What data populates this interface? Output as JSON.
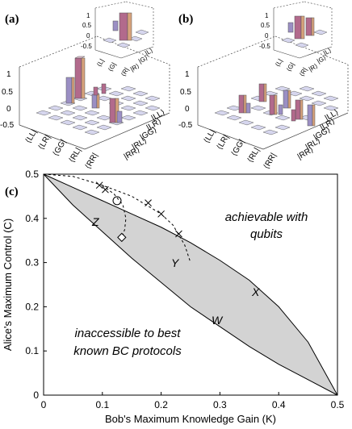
{
  "panels": {
    "a": {
      "label": "(a)",
      "main_tick_labels": [
        "1",
        "0.5",
        "0",
        "-0.5"
      ],
      "basis": [
        "⟨LL|",
        "⟨LR|",
        "⟨GG|",
        "⟨RL|",
        "⟨RR|"
      ],
      "basis_right": [
        "|LL⟩",
        "|LR⟩",
        "|GG⟩",
        "|RL⟩",
        "|RR⟩"
      ],
      "inset_tick_labels": [
        "1",
        "0.5",
        "0",
        "-0.5"
      ],
      "inset_basis": [
        "⟨L|",
        "⟨G|",
        "⟨R|"
      ],
      "inset_basis_right": [
        "|L⟩",
        "|G⟩",
        "|R⟩"
      ]
    },
    "b": {
      "label": "(b)",
      "main_tick_labels": [
        "1",
        "0.5",
        "0",
        "-0.5"
      ],
      "basis": [
        "⟨LL|",
        "⟨LR|",
        "⟨GG|",
        "⟨RL|",
        "⟨RR|"
      ],
      "basis_right": [
        "|LL⟩",
        "|LR⟩",
        "|GG⟩",
        "|RL⟩",
        "|RR⟩"
      ],
      "inset_tick_labels": [
        "1",
        "0.5",
        "0",
        "-0.5"
      ],
      "inset_basis": [
        "⟨L|",
        "⟨G|",
        "⟨R|"
      ],
      "inset_basis_right": [
        "|L⟩",
        "|G⟩",
        "|R⟩"
      ]
    }
  },
  "chart_data": {
    "label": "(c)",
    "type": "line",
    "xlabel": "Bob's Maximum Knowledge Gain (K)",
    "ylabel": "Alice's Maximum Control (C)",
    "xlim": [
      0,
      0.5
    ],
    "ylim": [
      0,
      0.5
    ],
    "xticks": [
      "0",
      "0.1",
      "0.2",
      "0.3",
      "0.4",
      "0.5"
    ],
    "yticks": [
      "0",
      "0.1",
      "0.2",
      "0.3",
      "0.4",
      "0.5"
    ],
    "annotations": {
      "achievable": [
        "achievable with",
        "qubits"
      ],
      "inaccessible": [
        "inaccessible to best",
        "known BC protocols"
      ],
      "curve_labels": [
        "Z",
        "Y",
        "X",
        "W"
      ]
    },
    "series": [
      {
        "style": "solid",
        "x": [
          0,
          0.05,
          0.1,
          0.15,
          0.2,
          0.25,
          0.3,
          0.35,
          0.4,
          0.45,
          0.5
        ],
        "y": [
          0.5,
          0.47,
          0.44,
          0.41,
          0.38,
          0.345,
          0.305,
          0.26,
          0.2,
          0.12,
          0
        ]
      },
      {
        "style": "solid",
        "x": [
          0,
          0.05,
          0.1,
          0.15,
          0.2,
          0.25,
          0.3,
          0.35,
          0.4,
          0.45,
          0.5
        ],
        "y": [
          0.5,
          0.43,
          0.37,
          0.31,
          0.255,
          0.2,
          0.155,
          0.11,
          0.07,
          0.035,
          0
        ]
      },
      {
        "style": "dashed",
        "x": [
          0,
          0.05,
          0.1,
          0.15,
          0.2,
          0.22,
          0.24,
          0.25
        ],
        "y": [
          0.5,
          0.495,
          0.475,
          0.45,
          0.41,
          0.385,
          0.34,
          0.3
        ]
      },
      {
        "style": "dashed",
        "x": [
          0.1,
          0.12,
          0.135,
          0.14,
          0.138,
          0.133
        ],
        "y": [
          0.475,
          0.455,
          0.43,
          0.4,
          0.375,
          0.355
        ]
      }
    ],
    "markers": [
      {
        "symbol": "x",
        "x": 0.095,
        "y": 0.475
      },
      {
        "symbol": "x",
        "x": 0.105,
        "y": 0.465
      },
      {
        "symbol": "x",
        "x": 0.178,
        "y": 0.435
      },
      {
        "symbol": "x",
        "x": 0.2,
        "y": 0.41
      },
      {
        "symbol": "x",
        "x": 0.23,
        "y": 0.365
      },
      {
        "symbol": "circle",
        "x": 0.125,
        "y": 0.44
      },
      {
        "symbol": "diamond",
        "x": 0.133,
        "y": 0.357
      }
    ]
  }
}
